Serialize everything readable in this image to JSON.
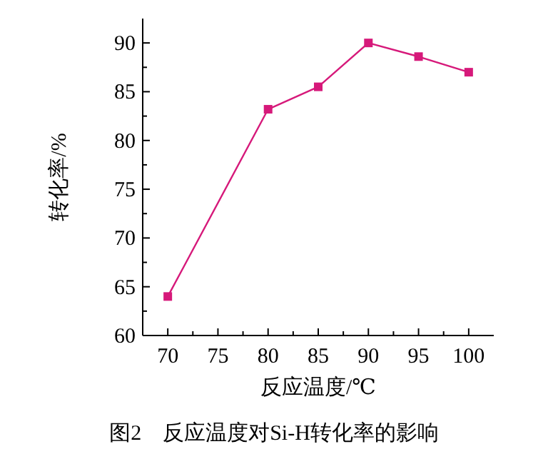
{
  "chart_data": {
    "type": "line",
    "xlabel": "反应温度/℃",
    "ylabel": "转化率/%",
    "x": [
      70,
      80,
      85,
      90,
      95,
      100
    ],
    "series": [
      {
        "color": "#d6197a",
        "values": [
          64.0,
          83.2,
          85.5,
          90.0,
          88.6,
          87.0
        ]
      }
    ],
    "marker": "square",
    "line_style": "solid",
    "xlim": [
      67.5,
      102.5
    ],
    "ylim": [
      60,
      92.5
    ],
    "xticks": [
      70,
      {
        "value": 72.5,
        "label": null
      },
      75,
      {
        "value": 77.5,
        "label": null
      },
      80,
      {
        "value": 82.5,
        "label": null
      },
      85,
      {
        "value": 87.5,
        "label": null
      },
      90,
      {
        "value": 92.5,
        "label": null
      },
      95,
      {
        "value": 97.5,
        "label": null
      },
      100
    ],
    "yticks": [
      60,
      {
        "value": 62.5,
        "label": null
      },
      65,
      {
        "value": 67.5,
        "label": null
      },
      70,
      {
        "value": 72.5,
        "label": null
      },
      75,
      {
        "value": 77.5,
        "label": null
      },
      80,
      {
        "value": 82.5,
        "label": null
      },
      85,
      {
        "value": 87.5,
        "label": null
      },
      90
    ],
    "annotations": [
      "图2　反应温度对Si-H转化率的影响"
    ]
  }
}
